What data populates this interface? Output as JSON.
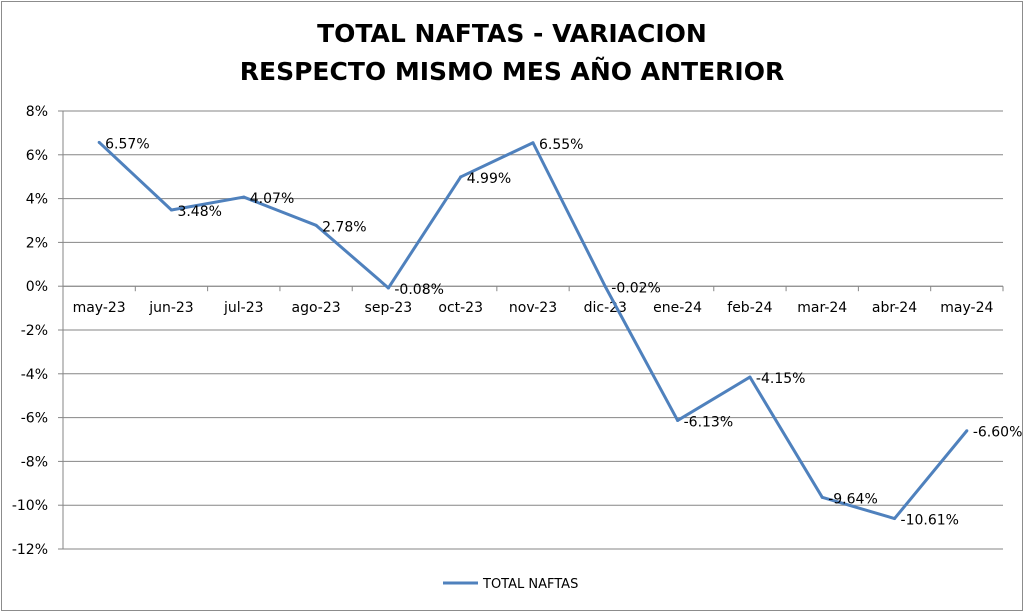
{
  "chart_data": {
    "type": "line",
    "title": [
      "TOTAL NAFTAS - VARIACION",
      "RESPECTO MISMO MES AÑO ANTERIOR"
    ],
    "xlabel": "",
    "ylabel": "",
    "categories": [
      "may-23",
      "jun-23",
      "jul-23",
      "ago-23",
      "sep-23",
      "oct-23",
      "nov-23",
      "dic-23",
      "ene-24",
      "feb-24",
      "mar-24",
      "abr-24",
      "may-24"
    ],
    "series": [
      {
        "name": "TOTAL NAFTAS",
        "color": "#4f81bd",
        "values": [
          6.57,
          3.48,
          4.07,
          2.78,
          -0.08,
          4.99,
          6.55,
          -0.02,
          -6.13,
          -4.15,
          -9.64,
          -10.61,
          -6.6
        ],
        "labels": [
          "6.57%",
          "3.48%",
          "4.07%",
          "2.78%",
          "-0.08%",
          "4.99%",
          "6.55%",
          "-0.02%",
          "-6.13%",
          "-4.15%",
          "-9.64%",
          "-10.61%",
          "-6.60%"
        ]
      }
    ],
    "ylim": [
      -12,
      8
    ],
    "yticks": [
      8,
      6,
      4,
      2,
      0,
      -2,
      -4,
      -6,
      -8,
      -10,
      -12
    ],
    "ytick_labels": [
      "8%",
      "6%",
      "4%",
      "2%",
      "0%",
      "-2%",
      "-4%",
      "-6%",
      "-8%",
      "-10%",
      "-12%"
    ],
    "grid": true,
    "legend": "bottom"
  }
}
